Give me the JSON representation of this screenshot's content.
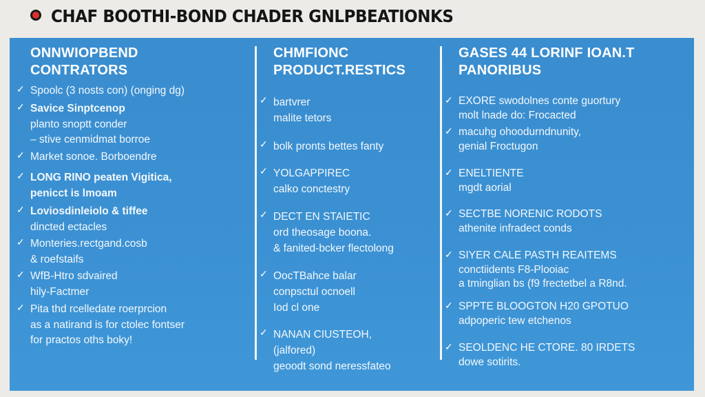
{
  "header": {
    "title": "CHAF BOOTHI-BOND CHADER GNLPBEATIONKS",
    "logo_icon": "red-circle-icon"
  },
  "colors": {
    "panel": "#3a8fd0",
    "background": "#ecebe7",
    "logo": "#d8322a"
  },
  "columns": [
    {
      "heading": [
        "ONNWIOPBEND",
        "CONTRATORS"
      ],
      "items": [
        {
          "bold": false,
          "lines": [
            "Spoolc (3 nosts con) (onging dg)"
          ]
        },
        {
          "bold": true,
          "lines": [
            "Savice Sinptcenop"
          ],
          "sub": [
            "planto snoptt conder",
            "– stive cenmidmat borroe"
          ]
        },
        {
          "bold": false,
          "lines": [
            "Market sonoe. Borboendre"
          ]
        },
        {
          "bold": true,
          "lines": [
            "LONG RINO peaten Vigitica,",
            "penicct is lmoam"
          ]
        },
        {
          "bold": true,
          "lines": [
            "Loviosdinleiolo & tiffee"
          ],
          "sub": [
            "dincted ectacles"
          ]
        },
        {
          "bold": false,
          "lines": [
            "Monteries.rectgand.cosb",
            "& roefstaifs"
          ]
        },
        {
          "bold": false,
          "lines": [
            "WfB-Htro sdvaired",
            "hily-Factmer"
          ]
        },
        {
          "bold": false,
          "lines": [
            "Pita thd rcelledate roerprcion",
            "as a natirand is for ctolec fontser",
            "for practos oths boky!"
          ]
        }
      ]
    },
    {
      "heading": [
        "CHMFIONC",
        "PRODUCT.RESTICS"
      ],
      "items": [
        {
          "bold": false,
          "lines": [
            "bartvrer",
            "malite tetors"
          ]
        },
        {
          "bold": false,
          "lines": [
            "bolk pronts bettes fanty"
          ]
        },
        {
          "bold": false,
          "lines": [
            "YOLGAPPIREC",
            "calko conctestry"
          ]
        },
        {
          "bold": false,
          "lines": [
            "DECT EN STAIETIC",
            "ord theosage boona.",
            "& fanited-bcker flectolong"
          ]
        },
        {
          "bold": false,
          "lines": [
            "OocTBahce balar",
            "conpsctul ocnoell",
            "Iod cl one"
          ]
        },
        {
          "bold": false,
          "lines": [
            "NANAN CIUSTEOH,",
            "(jalfored)",
            "geoodt sond neressfateo"
          ]
        }
      ]
    },
    {
      "heading": [
        "GASES 44 LORINF IOAN.T",
        "PANORIBUS"
      ],
      "items": [
        {
          "bold": false,
          "lines": [
            "EXORE swodolnes conte guortury",
            "molt lnade do: Frocacted"
          ]
        },
        {
          "bold": false,
          "lines": [
            "macuhg ohoodurndnunity,",
            "genial Froctugon"
          ]
        },
        {
          "bold": false,
          "lines": [
            "ENELTIENTE",
            "mgdt aorial"
          ]
        },
        {
          "bold": false,
          "lines": [
            "SECTBE NORENIC RODOTS",
            "athenite infradect conds"
          ]
        },
        {
          "bold": false,
          "lines": [
            "SIYER CALE PASTH REAITEMS",
            "conctiidents F8-Plooiac",
            "a tminglian bs (f9 frectetbel a R8nd."
          ]
        },
        {
          "bold": false,
          "lines": [
            "SPPTE BLOOGTON H20 GPOTUO",
            "adpoperic tew etchenos"
          ]
        },
        {
          "bold": false,
          "lines": [
            "SEOLDENC HE CTORE. 80 IRDETS",
            "dowe sotirits."
          ]
        }
      ]
    }
  ]
}
